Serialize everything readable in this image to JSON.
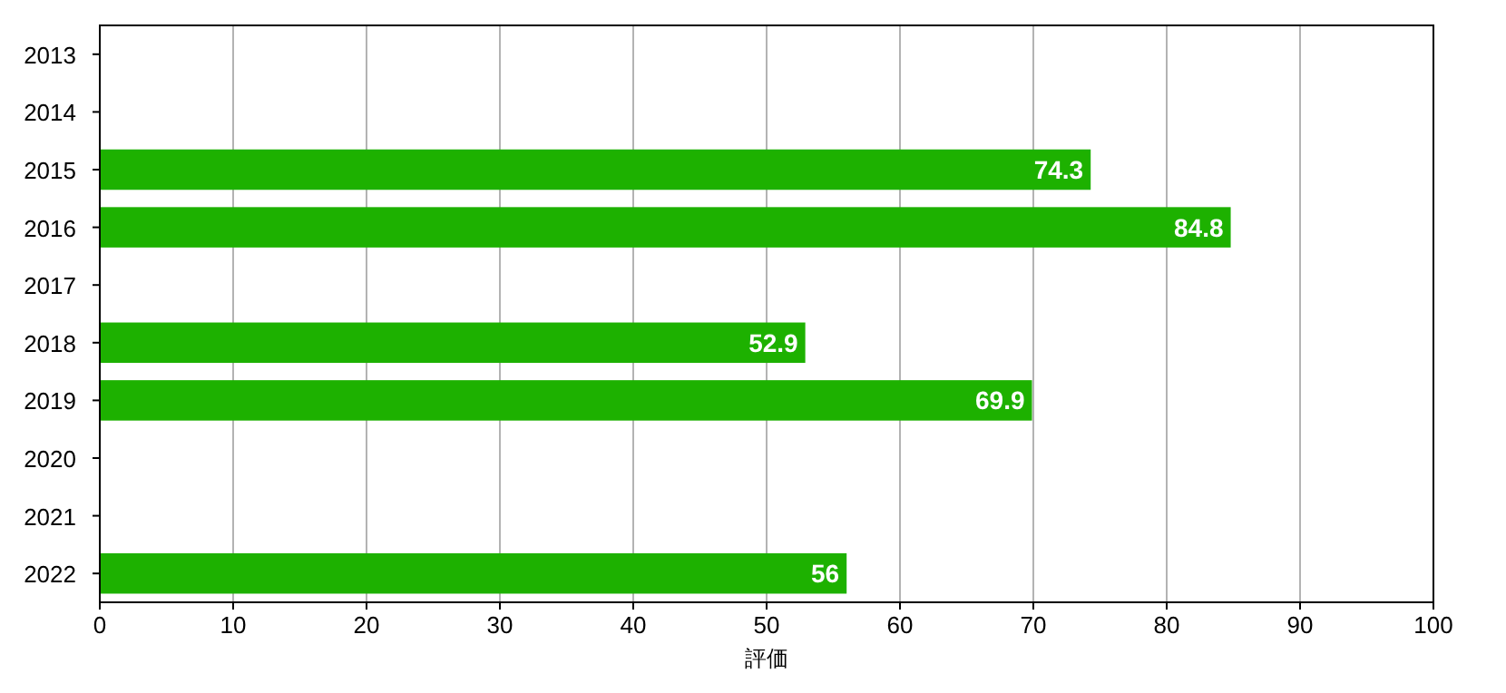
{
  "chart_data": {
    "type": "bar",
    "orientation": "horizontal",
    "xlabel": "評価",
    "categories": [
      "2013",
      "2014",
      "2015",
      "2016",
      "2017",
      "2018",
      "2019",
      "2020",
      "2021",
      "2022"
    ],
    "values": [
      null,
      null,
      74.3,
      84.8,
      null,
      52.9,
      69.9,
      null,
      null,
      56
    ],
    "color": "#1db100",
    "xlim": [
      0,
      100
    ],
    "xticks": [
      0,
      10,
      20,
      30,
      40,
      50,
      60,
      70,
      80,
      90,
      100
    ],
    "grid": "x",
    "data_labels": true
  }
}
